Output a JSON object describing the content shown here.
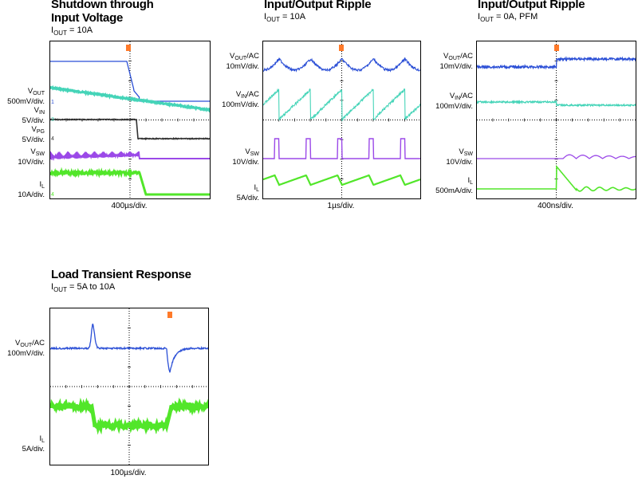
{
  "chart_data": [
    {
      "type": "line",
      "title": "Shutdown through Input Voltage",
      "title_line1": "Shutdown through",
      "title_line2": "Input Voltage",
      "condition": {
        "var": "I",
        "sub": "OUT",
        "value": " = 10A"
      },
      "timebase": "400µs/div.",
      "channels": [
        {
          "name": "VOUT",
          "sym": "V",
          "sub": "OUT",
          "suffix": "",
          "scale": "500mV/div.",
          "color": "#2b4fd6",
          "marker": "1"
        },
        {
          "name": "VIN",
          "sym": "V",
          "sub": "IN",
          "suffix": "",
          "scale": "5V/div.",
          "color": "#45d4b8",
          "marker": "3"
        },
        {
          "name": "VPG",
          "sym": "V",
          "sub": "PG",
          "suffix": "",
          "scale": "5V/div.",
          "color": "#333333",
          "marker": "4"
        },
        {
          "name": "VSW",
          "sym": "V",
          "sub": "SW",
          "suffix": "",
          "scale": "10V/div.",
          "color": "#9b49e8",
          "marker": "2"
        },
        {
          "name": "IL",
          "sym": "I",
          "sub": "L",
          "suffix": "",
          "scale": "10A/div.",
          "color": "#52e62a",
          "marker": "4"
        }
      ],
      "xlim": [
        0,
        10
      ],
      "grid": true
    },
    {
      "type": "line",
      "title": "Input/Output Ripple",
      "condition": {
        "var": "I",
        "sub": "OUT",
        "value": " = 10A"
      },
      "timebase": "1µs/div.",
      "channels": [
        {
          "name": "VOUT/AC",
          "sym": "V",
          "sub": "OUT",
          "suffix": "/AC",
          "scale": "10mV/div.",
          "color": "#2b4fd6",
          "marker": "1"
        },
        {
          "name": "VIN/AC",
          "sym": "V",
          "sub": "IN",
          "suffix": "/AC",
          "scale": "100mV/div.",
          "color": "#45d4b8",
          "marker": "3"
        },
        {
          "name": "VSW",
          "sym": "V",
          "sub": "SW",
          "suffix": "",
          "scale": "10V/div.",
          "color": "#9b49e8",
          "marker": "2"
        },
        {
          "name": "IL",
          "sym": "I",
          "sub": "L",
          "suffix": "",
          "scale": "5A/div.",
          "color": "#52e62a",
          "marker": "4"
        }
      ],
      "xlim": [
        0,
        10
      ],
      "grid": true
    },
    {
      "type": "line",
      "title": "Input/Output Ripple",
      "condition": {
        "var": "I",
        "sub": "OUT",
        "value": " = 0A, PFM"
      },
      "timebase": "400ns/div.",
      "channels": [
        {
          "name": "VOUT/AC",
          "sym": "V",
          "sub": "OUT",
          "suffix": "/AC",
          "scale": "10mV/div.",
          "color": "#2b4fd6",
          "marker": "1"
        },
        {
          "name": "VIN/AC",
          "sym": "V",
          "sub": "IN",
          "suffix": "/AC",
          "scale": "100mV/div.",
          "color": "#45d4b8",
          "marker": "3"
        },
        {
          "name": "VSW",
          "sym": "V",
          "sub": "SW",
          "suffix": "",
          "scale": "10V/div.",
          "color": "#9b49e8",
          "marker": "2"
        },
        {
          "name": "IL",
          "sym": "I",
          "sub": "L",
          "suffix": "",
          "scale": "500mA/div.",
          "color": "#52e62a",
          "marker": "4"
        }
      ],
      "xlim": [
        0,
        10
      ],
      "grid": true
    },
    {
      "type": "line",
      "title": "Load Transient Response",
      "condition": {
        "var": "I",
        "sub": "OUT",
        "value": " = 5A to 10A"
      },
      "timebase": "100µs/div.",
      "channels": [
        {
          "name": "VOUT/AC",
          "sym": "V",
          "sub": "OUT",
          "suffix": "/AC",
          "scale": "100mV/div.",
          "color": "#2b4fd6",
          "marker": "1"
        },
        {
          "name": "IL",
          "sym": "I",
          "sub": "L",
          "suffix": "",
          "scale": "5A/div.",
          "color": "#52e62a",
          "marker": "4"
        }
      ],
      "xlim": [
        0,
        10
      ],
      "grid": true
    }
  ]
}
